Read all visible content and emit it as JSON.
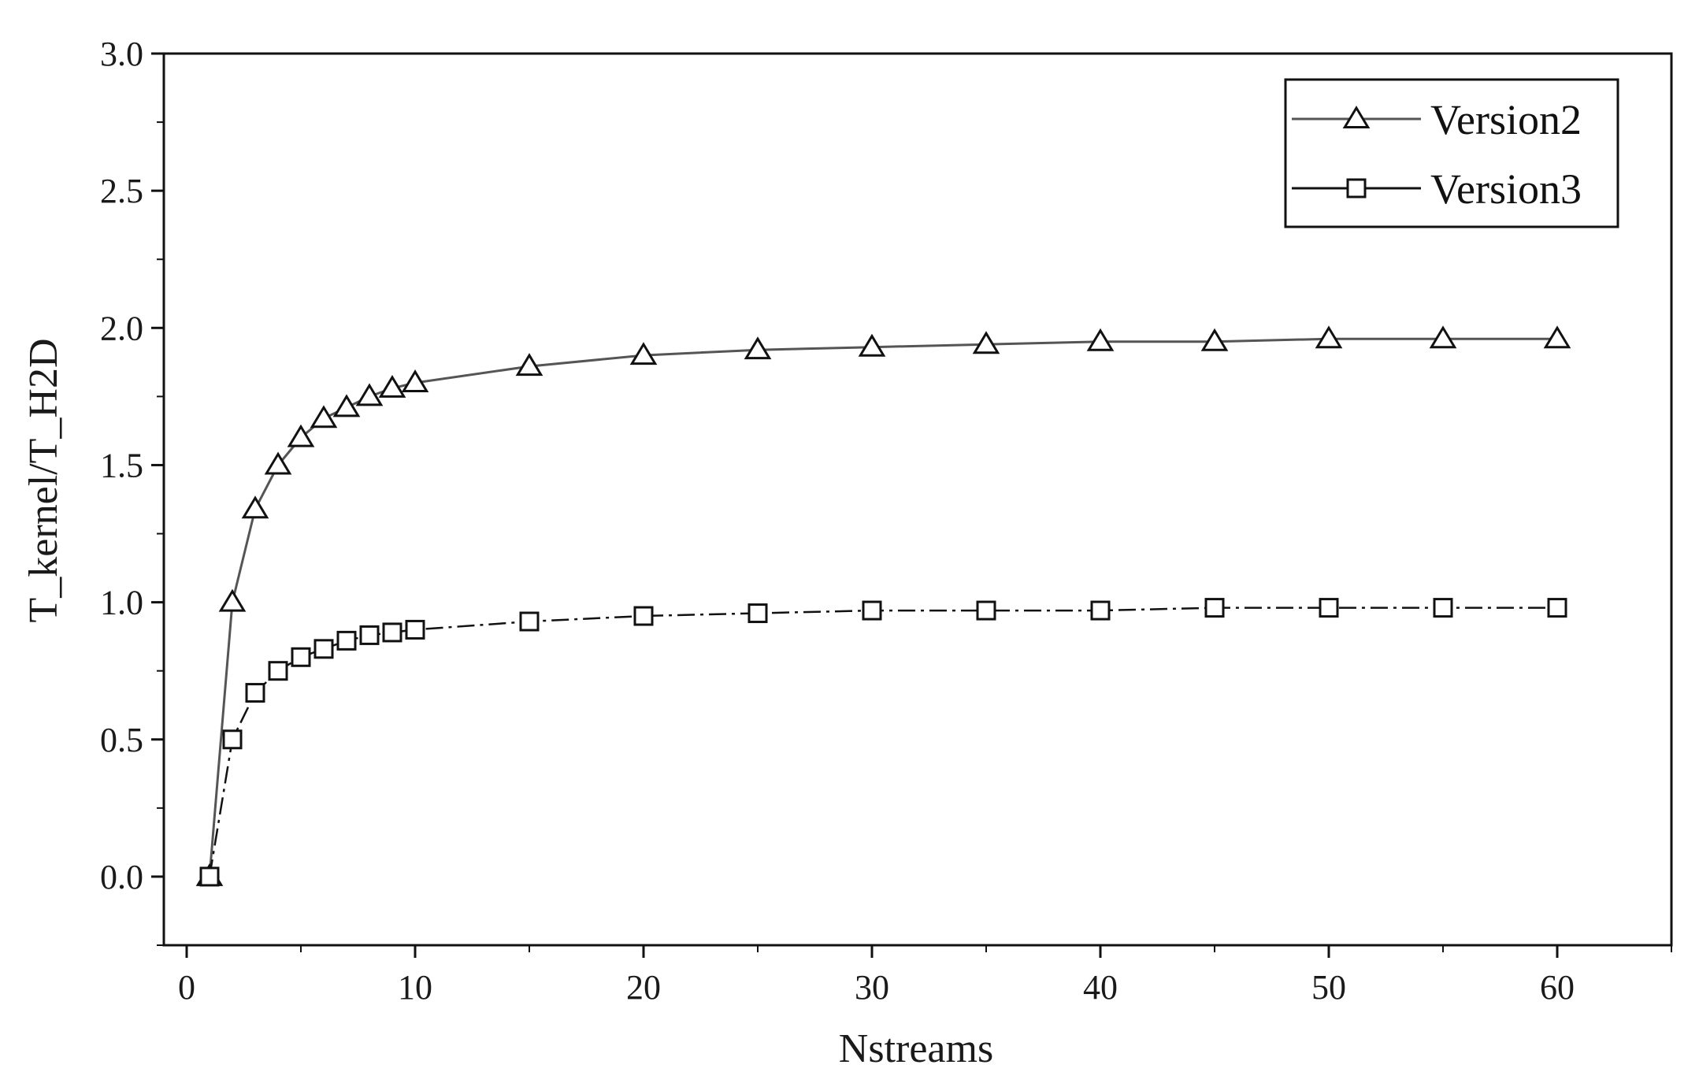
{
  "chart_data": {
    "type": "line",
    "xlabel": "Nstreams",
    "ylabel": "T_kernel/T_H2D",
    "xlim": [
      -1,
      65
    ],
    "ylim": [
      -0.25,
      3.0
    ],
    "x_ticks": [
      0,
      10,
      20,
      30,
      40,
      50,
      60
    ],
    "x_tick_labels": [
      "0",
      "10",
      "20",
      "30",
      "40",
      "50",
      "60"
    ],
    "y_ticks": [
      0.0,
      0.5,
      1.0,
      1.5,
      2.0,
      2.5,
      3.0
    ],
    "y_tick_labels": [
      "0.0",
      "0.5",
      "1.0",
      "1.5",
      "2.0",
      "2.5",
      "3.0"
    ],
    "grid": false,
    "legend_position": "top-right",
    "x": [
      1,
      2,
      3,
      4,
      5,
      6,
      7,
      8,
      9,
      10,
      15,
      20,
      25,
      30,
      35,
      40,
      45,
      50,
      55,
      60
    ],
    "series": [
      {
        "name": "Version2",
        "marker": "triangle",
        "line_style": "solid",
        "color": "#555555",
        "values": [
          0.0,
          1.0,
          1.34,
          1.5,
          1.6,
          1.67,
          1.71,
          1.75,
          1.78,
          1.8,
          1.86,
          1.9,
          1.92,
          1.93,
          1.94,
          1.95,
          1.95,
          1.96,
          1.96,
          1.96
        ]
      },
      {
        "name": "Version3",
        "marker": "square",
        "line_style": "dash-dot",
        "color": "#111111",
        "values": [
          0.0,
          0.5,
          0.67,
          0.75,
          0.8,
          0.83,
          0.86,
          0.88,
          0.89,
          0.9,
          0.93,
          0.95,
          0.96,
          0.97,
          0.97,
          0.97,
          0.98,
          0.98,
          0.98,
          0.98
        ]
      }
    ]
  }
}
